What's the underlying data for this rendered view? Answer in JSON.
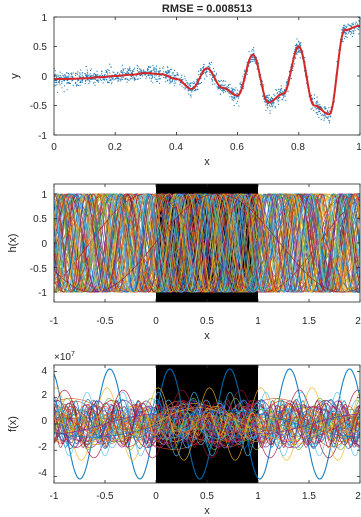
{
  "chart_data": [
    {
      "type": "scatter",
      "title": "RMSE = 0.008513",
      "xlabel": "x",
      "ylabel": "y",
      "xlim": [
        0,
        1
      ],
      "ylim": [
        -1,
        1
      ],
      "xticks": [
        "0",
        "0.2",
        "0.4",
        "0.6",
        "0.8",
        "1"
      ],
      "yticks": [
        "1",
        "0.5",
        "0",
        "-0.5",
        "-1"
      ],
      "grid": false,
      "series": [
        {
          "kind": "scatter",
          "color": "#1f77b4",
          "description": "noisy samples",
          "x": [
            0,
            0.05,
            0.1,
            0.15,
            0.2,
            0.25,
            0.3,
            0.35,
            0.4,
            0.45,
            0.5,
            0.55,
            0.6,
            0.65,
            0.7,
            0.75,
            0.8,
            0.85,
            0.9,
            0.95,
            1.0
          ],
          "y": [
            -0.05,
            -0.04,
            -0.03,
            -0.02,
            0.0,
            0.02,
            0.04,
            0.02,
            -0.05,
            -0.25,
            0.12,
            -0.2,
            -0.35,
            0.35,
            -0.45,
            -0.3,
            0.5,
            -0.5,
            -0.65,
            0.78,
            0.85
          ]
        },
        {
          "kind": "line",
          "color": "#d62728",
          "description": "model fit",
          "x": [
            0,
            0.05,
            0.1,
            0.15,
            0.2,
            0.25,
            0.3,
            0.35,
            0.4,
            0.45,
            0.5,
            0.55,
            0.6,
            0.65,
            0.7,
            0.75,
            0.8,
            0.85,
            0.9,
            0.95,
            1.0
          ],
          "y": [
            -0.05,
            -0.05,
            -0.04,
            -0.02,
            0.0,
            0.02,
            0.05,
            0.03,
            -0.05,
            -0.22,
            0.13,
            -0.2,
            -0.33,
            0.36,
            -0.45,
            -0.3,
            0.5,
            -0.5,
            -0.65,
            0.78,
            0.85
          ]
        }
      ]
    },
    {
      "type": "line",
      "title": "",
      "xlabel": "x",
      "ylabel": "h(x)",
      "xlim": [
        -1,
        2
      ],
      "ylim": [
        -1.2,
        1.2
      ],
      "xticks": [
        "-1",
        "-0.5",
        "0",
        "0.5",
        "1",
        "1.5",
        "2"
      ],
      "yticks": [
        "1",
        "0.5",
        "0",
        "-0.5",
        "-1"
      ],
      "grid": false,
      "shaded_region": {
        "x": [
          0,
          1
        ],
        "color": "#000000"
      },
      "series_count_approx": 80,
      "series_range": [
        -1,
        1
      ],
      "palette": [
        "#0072bd",
        "#d95319",
        "#edb120",
        "#7e2f8e",
        "#77ac30",
        "#4dbeee",
        "#a2142f"
      ]
    },
    {
      "type": "line",
      "title": "",
      "xlabel": "x",
      "ylabel": "f(x)",
      "xlim": [
        -1,
        2
      ],
      "ylim": [
        -4.5,
        4.5
      ],
      "y_exponent": "×10^7",
      "xticks": [
        "-1",
        "-0.5",
        "0",
        "0.5",
        "1",
        "1.5",
        "2"
      ],
      "yticks": [
        "4",
        "2",
        "0",
        "-2",
        "-4"
      ],
      "grid": false,
      "shaded_region": {
        "x": [
          0,
          1
        ],
        "color": "#000000"
      },
      "series_count_approx": 60,
      "series_range": [
        -4.2,
        4.2
      ],
      "palette": [
        "#0072bd",
        "#d95319",
        "#edb120",
        "#7e2f8e",
        "#77ac30",
        "#4dbeee",
        "#a2142f"
      ]
    }
  ],
  "labels": {
    "title": "RMSE = 0.008513",
    "exponent_base": "×10",
    "exponent_power": "7"
  }
}
